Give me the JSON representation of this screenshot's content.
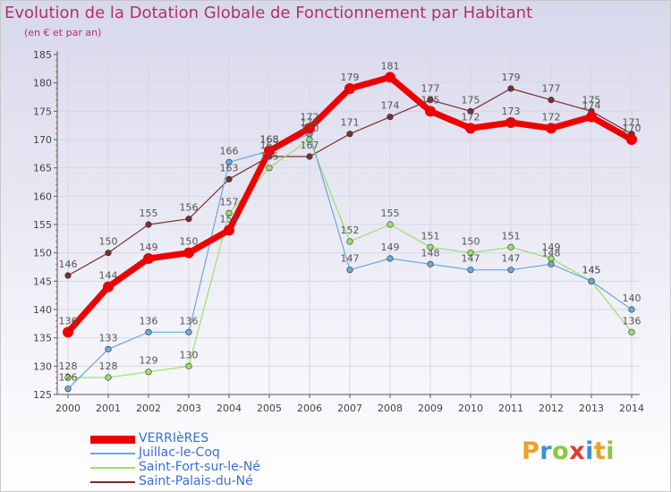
{
  "header": {
    "title": "Evolution de la Dotation Globale de Fonctionnement par Habitant",
    "subtitle": "(en € et par an)"
  },
  "colors": {
    "title": "#b0306a",
    "axis": "#555555",
    "grid": "#d7d7e5",
    "background_top": "#d8d8ec",
    "background_bottom": "#ffffff"
  },
  "logo": {
    "letters": [
      "P",
      "r",
      "o",
      "x",
      "i",
      "t",
      "i"
    ]
  },
  "chart_data": {
    "type": "line",
    "x": [
      2000,
      2001,
      2002,
      2003,
      2004,
      2005,
      2006,
      2007,
      2008,
      2009,
      2010,
      2011,
      2012,
      2013,
      2014
    ],
    "ylim": [
      125,
      185
    ],
    "yticks": [
      125,
      130,
      135,
      140,
      145,
      150,
      155,
      160,
      165,
      170,
      175,
      180,
      185
    ],
    "grid": true,
    "legend_position": "bottom-left",
    "series": [
      {
        "name": "VERRIèRES",
        "color": "#ee0000",
        "width": 7,
        "marker": 6,
        "values": [
          136,
          144,
          149,
          150,
          154,
          168,
          172,
          179,
          181,
          175,
          172,
          173,
          172,
          174,
          170
        ]
      },
      {
        "name": "Juillac-le-Coq",
        "color": "#6aa8d8",
        "width": 1.2,
        "marker": 3.3,
        "values": [
          126,
          133,
          136,
          136,
          166,
          168,
          171,
          147,
          149,
          148,
          147,
          147,
          148,
          145,
          140
        ]
      },
      {
        "name": "Saint-Fort-sur-le-Né",
        "color": "#99e06a",
        "width": 1.2,
        "marker": 3.3,
        "values": [
          128,
          128,
          129,
          130,
          157,
          165,
          170,
          152,
          155,
          151,
          150,
          151,
          149,
          145,
          136
        ]
      },
      {
        "name": "Saint-Palais-du-Né",
        "color": "#7a2e2e",
        "width": 1.2,
        "marker": 3.3,
        "values": [
          146,
          150,
          155,
          156,
          163,
          167,
          167,
          171,
          174,
          177,
          175,
          179,
          177,
          175,
          171
        ]
      }
    ]
  }
}
